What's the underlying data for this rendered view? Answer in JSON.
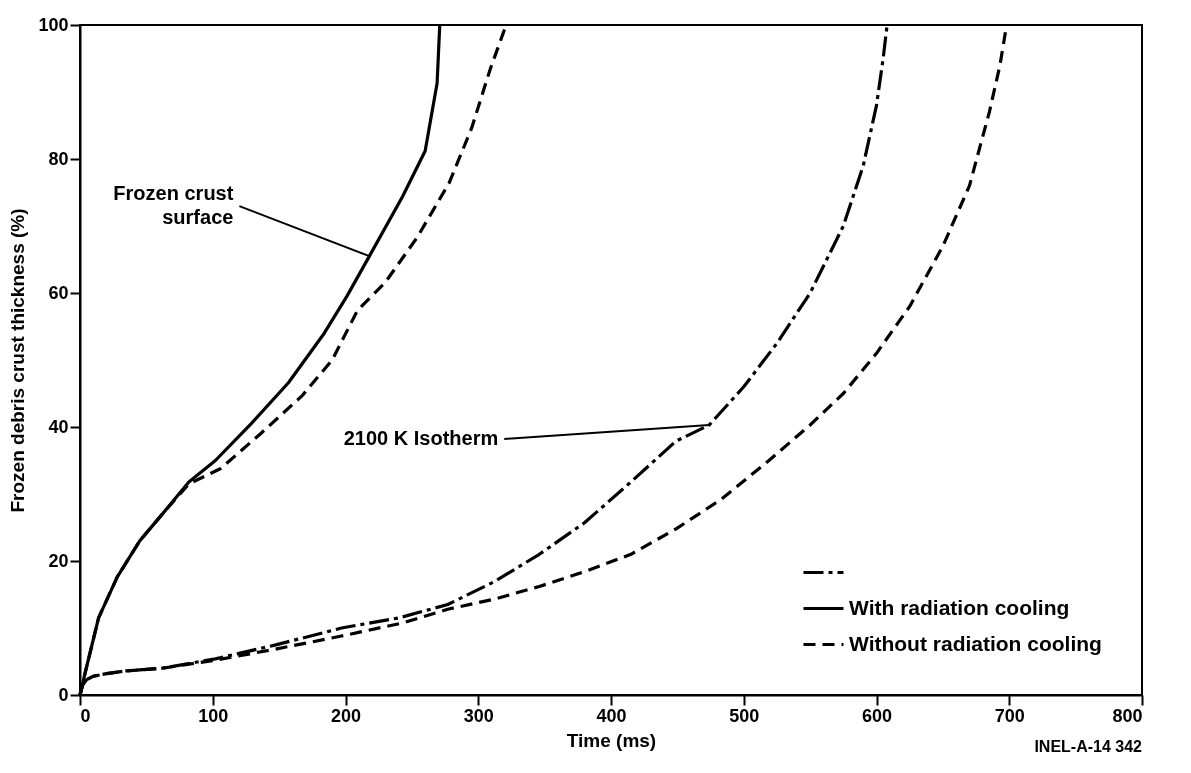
{
  "chart_data": {
    "type": "line",
    "xlabel": "Time (ms)",
    "ylabel": "Frozen debris crust thickness (%)",
    "xlim": [
      0,
      800
    ],
    "xticks": [
      0,
      100,
      200,
      300,
      400,
      500,
      600,
      700,
      800
    ],
    "ylim": [
      0,
      100
    ],
    "yticks": [
      0,
      20,
      40,
      60,
      80,
      100
    ],
    "grid": false,
    "legend": "bottom right",
    "marker": "none",
    "series": [
      {
        "color": "#000000",
        "line_style": "dashdot",
        "x": [
          0,
          2,
          5,
          10,
          20,
          35,
          62,
          102,
          146,
          197,
          240,
          277,
          312,
          346,
          380,
          415,
          449,
          474,
          500,
          525,
          550,
          575,
          590,
          600,
          605,
          608
        ],
        "values": [
          0,
          1.5,
          2.3,
          2.8,
          3.2,
          3.6,
          4,
          5.4,
          7.4,
          10,
          11.5,
          13.5,
          16.9,
          21,
          25.7,
          31.8,
          37.9,
          40.3,
          46,
          52.5,
          60,
          70,
          79,
          88,
          95,
          100
        ]
      },
      {
        "name": "With radiation cooling",
        "color": "#000000",
        "line_style": "solid",
        "x": [
          0,
          4,
          14,
          28,
          45,
          62,
          82,
          102,
          129,
          157,
          184,
          201,
          218,
          243,
          260,
          269,
          271
        ],
        "values": [
          0,
          3.4,
          11.5,
          17.6,
          23,
          27,
          31.8,
          35,
          40.5,
          46.6,
          54,
          59.5,
          65.5,
          74.4,
          81.2,
          91.3,
          100
        ]
      },
      {
        "name": "Without radiation cooling",
        "color": "#000000",
        "line_style": "dashed",
        "x": [
          0,
          4,
          14,
          28,
          45,
          62,
          82,
          106,
          136,
          167,
          190,
          209,
          230,
          254,
          278,
          295,
          309,
          321
        ],
        "values": [
          0,
          3.4,
          11.5,
          17.6,
          23,
          27,
          31.5,
          33.8,
          39,
          44.6,
          50,
          57.4,
          61.6,
          68.3,
          76.4,
          84.6,
          93.4,
          100
        ]
      },
      {
        "color": "#000000",
        "line_style": "dashed",
        "x": [
          0,
          2,
          5,
          10,
          20,
          35,
          62,
          102,
          146,
          197,
          244,
          277,
          312,
          346,
          380,
          415,
          449,
          483,
          519,
          550,
          575,
          600,
          625,
          650,
          670,
          685,
          693,
          698
        ],
        "values": [
          0,
          1.5,
          2.3,
          2.8,
          3.2,
          3.6,
          4,
          5.2,
          6.8,
          8.8,
          10.8,
          12.8,
          14.3,
          16.2,
          18.4,
          21,
          24.8,
          29.2,
          35,
          40.3,
          45,
          51,
          58,
          67,
          76,
          87,
          94,
          100
        ]
      }
    ],
    "annotations": [
      {
        "text": "Frozen crust\nsurface",
        "x": 218,
        "y": 65.5
      },
      {
        "text": "2100 K Isotherm",
        "x": 474,
        "y": 40.3
      },
      "INEL-A-14 342"
    ]
  }
}
